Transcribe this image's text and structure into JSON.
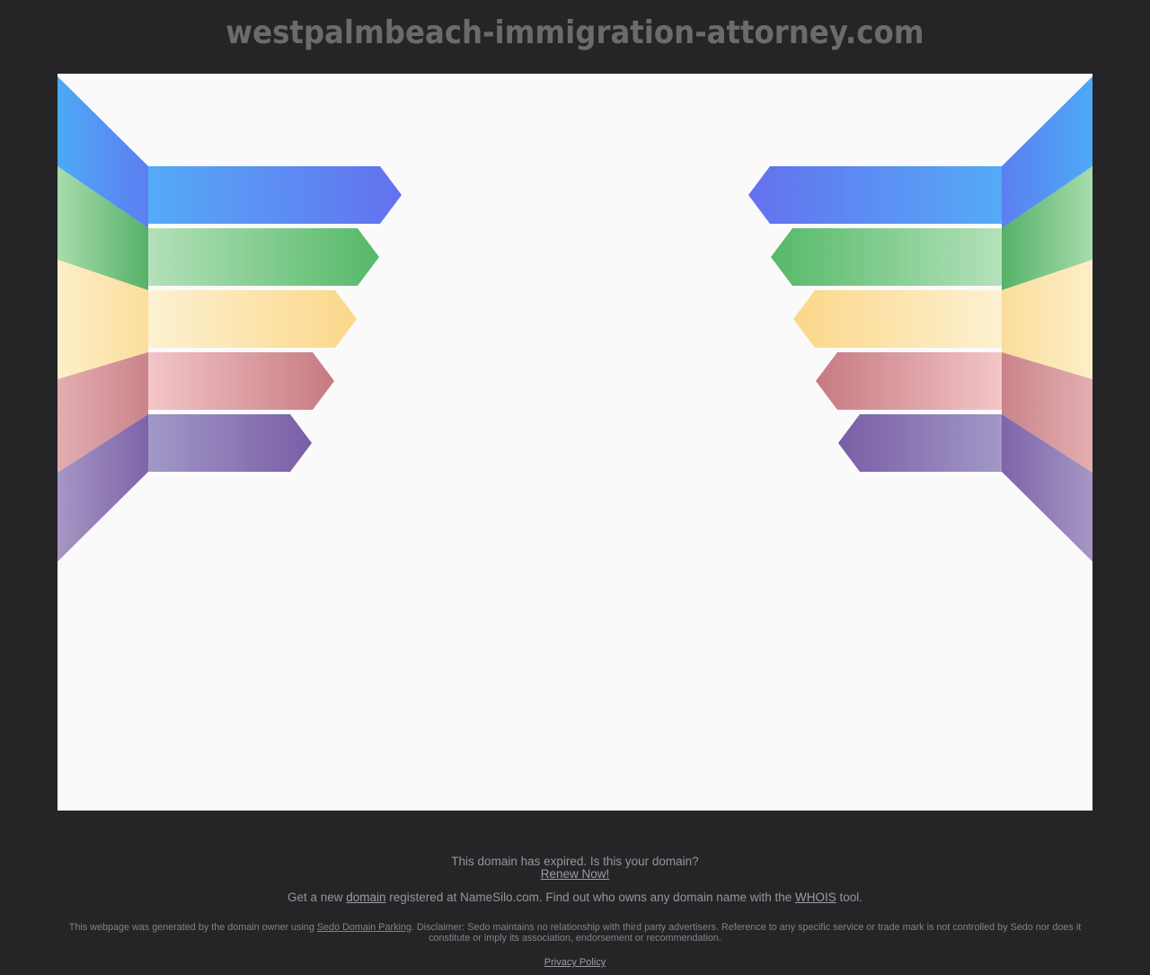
{
  "page": {
    "title": "westpalmbeach-immigration-attorney.com",
    "colors": {
      "background": "#252527",
      "panel": "#fafafa",
      "title_text": "#6b6b6b",
      "footer_text": "#94969a",
      "footer_link": "#9b9da1",
      "disclaimer_text": "#818386"
    }
  },
  "footer": {
    "expired_line": "This domain has expired. Is this your domain?",
    "renew_link": "Renew Now!",
    "getnew": {
      "prefix": "Get a new ",
      "domain_link": "domain",
      "middle": " registered at NameSilo.com. Find out who owns any domain name with the ",
      "whois_link": "WHOIS",
      "suffix": " tool."
    },
    "disclaimer": {
      "prefix": "This webpage was generated by the domain owner using ",
      "sedo_link": "Sedo Domain Parking",
      "suffix": ". Disclaimer: Sedo maintains no relationship with third party advertisers. Reference to any specific service or trade mark is not controlled by Sedo nor does it constitute or imply its association, endorsement or recommendation."
    },
    "privacy_link": "Privacy Policy"
  },
  "graphic": {
    "ribbons": [
      {
        "name": "blue",
        "band_light": "#54abf7",
        "band_dark": "#6471ee",
        "diag_fold": "#5c7ff1",
        "diag_edge": "#4da9f6"
      },
      {
        "name": "green",
        "band_light": "#b4e1ba",
        "band_dark": "#55b968",
        "diag_fold": "#55b168",
        "diag_edge": "#a8dcad"
      },
      {
        "name": "yellow",
        "band_light": "#fdf1d2",
        "band_dark": "#fbd789",
        "diag_fold": "#fbdd9a",
        "diag_edge": "#fdefc9"
      },
      {
        "name": "red",
        "band_light": "#f3c5c8",
        "band_dark": "#c67a81",
        "diag_fold": "#c9848b",
        "diag_edge": "#e3aeb1"
      },
      {
        "name": "purple",
        "band_light": "#a198c7",
        "band_dark": "#7a5ea6",
        "diag_fold": "#7e64a9",
        "diag_edge": "#a596c4"
      }
    ]
  }
}
